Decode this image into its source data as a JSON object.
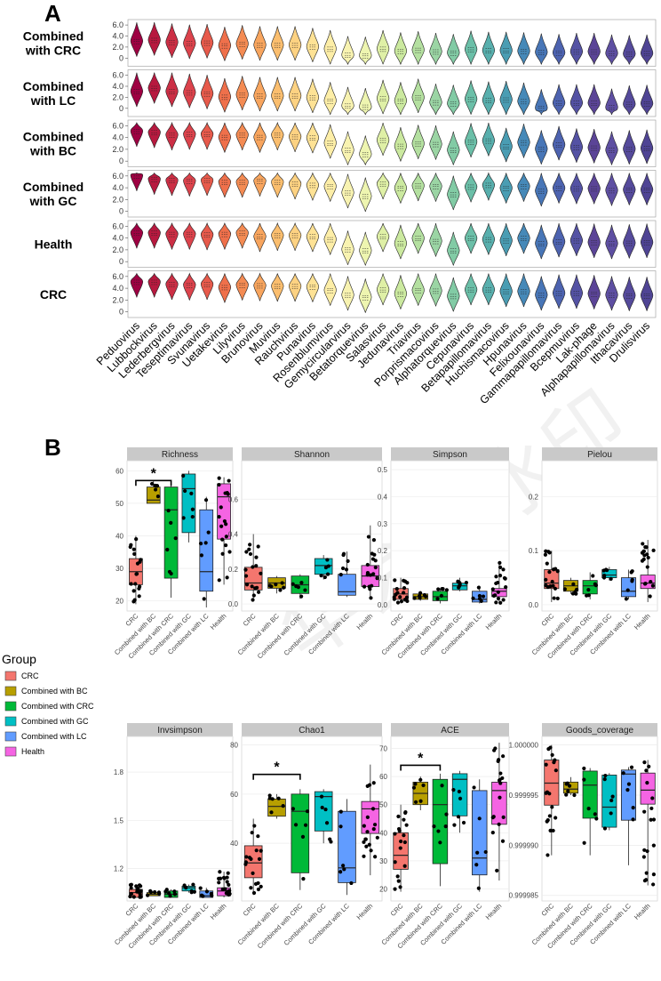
{
  "panel_a_label": "A",
  "panel_b_label": "B",
  "watermark_text": "华会员水印",
  "chart_data": [
    {
      "type": "violin",
      "panel": "A",
      "y_ticks": [
        "0",
        "2.0",
        "4.0",
        "6.0"
      ],
      "genera": [
        "Peduovirus",
        "Lubbockvirus",
        "Lederbergvirus",
        "Teseptimavirus",
        "Svunavirus",
        "Uetakevirus",
        "Lilyvirus",
        "Brunovirus",
        "Muvirus",
        "Rauchvirus",
        "Punavirus",
        "Rosenblumvirus",
        "Gemycircularvirus",
        "Betatorquevirus",
        "Salasvirus",
        "Jedunavirus",
        "Triavirus",
        "Porprismacovirus",
        "Alphatorquevirus",
        "Cepunavirus",
        "Betapapillomavirus",
        "Huchismacovirus",
        "Hpunavirus",
        "Felixounavirus",
        "Gammapapillomavirus",
        "Bcepmuvirus",
        "Lak-phage",
        "Alphapapillomavirus",
        "Ithacavirus",
        "Drulisvirus"
      ],
      "rows": [
        {
          "label_line1": "Combined",
          "label_line2": "with CRC",
          "ylim": [
            -1,
            6.5
          ],
          "ticks": [
            0,
            2,
            4,
            6
          ],
          "medians": [
            3.0,
            3.2,
            2.8,
            2.6,
            2.7,
            2.2,
            2.5,
            2.3,
            2.3,
            2.3,
            2.0,
            1.6,
            0.5,
            0.4,
            1.6,
            1.2,
            1.4,
            1.1,
            0.9,
            1.5,
            1.3,
            1.3,
            1.2,
            1.0,
            0.9,
            1.1,
            1.1,
            0.8,
            0.7,
            0.8
          ]
        },
        {
          "label_line1": "Combined",
          "label_line2": "with LC",
          "ylim": [
            -1,
            6.5
          ],
          "ticks": [
            0,
            2,
            4,
            6
          ],
          "medians": [
            3.0,
            3.6,
            3.0,
            2.8,
            2.6,
            2.0,
            2.4,
            2.2,
            2.2,
            2.2,
            1.9,
            1.3,
            0.4,
            0.2,
            1.7,
            1.3,
            1.9,
            1.0,
            0.8,
            1.6,
            1.4,
            1.5,
            1.2,
            0.0,
            0.9,
            0.9,
            0.9,
            0.1,
            0.7,
            0.8
          ]
        },
        {
          "label_line1": "Combined",
          "label_line2": "with BC",
          "ylim": [
            -0.5,
            6.5
          ],
          "ticks": [
            0,
            2,
            4,
            6
          ],
          "medians": [
            5.0,
            4.8,
            4.4,
            4.5,
            4.5,
            4.0,
            4.4,
            4.0,
            4.4,
            4.1,
            3.9,
            3.0,
            1.8,
            1.1,
            3.5,
            2.5,
            2.9,
            2.8,
            1.8,
            3.2,
            3.4,
            2.4,
            3.1,
            2.0,
            2.7,
            2.3,
            2.2,
            1.8,
            2.0,
            2.1
          ]
        },
        {
          "label_line1": "Combined",
          "label_line2": "with GC",
          "ylim": [
            -0.5,
            6.5
          ],
          "ticks": [
            0,
            2,
            4,
            6
          ],
          "medians": [
            6.0,
            5.4,
            5.2,
            5.1,
            5.2,
            4.9,
            4.9,
            5.1,
            4.9,
            4.6,
            4.4,
            4.2,
            3.1,
            2.5,
            4.6,
            3.9,
            4.3,
            4.2,
            2.8,
            4.1,
            4.4,
            3.9,
            4.2,
            3.4,
            3.9,
            3.8,
            3.8,
            3.5,
            3.6,
            3.6
          ]
        },
        {
          "label_line1": "Health",
          "label_line2": "",
          "ylim": [
            -0.5,
            6.5
          ],
          "ticks": [
            0,
            2,
            4,
            6
          ],
          "medians": [
            4.8,
            4.8,
            4.6,
            4.6,
            4.5,
            4.6,
            4.8,
            4.2,
            4.4,
            4.4,
            4.2,
            3.7,
            2.0,
            1.8,
            4.2,
            3.0,
            3.9,
            3.4,
            1.8,
            3.9,
            3.7,
            3.5,
            3.9,
            3.0,
            3.3,
            3.5,
            3.2,
            3.0,
            3.1,
            3.2
          ]
        },
        {
          "label_line1": "CRC",
          "label_line2": "",
          "ylim": [
            -0.5,
            6.5
          ],
          "ticks": [
            0,
            2,
            4,
            6
          ],
          "medians": [
            5.0,
            5.0,
            4.6,
            4.5,
            4.6,
            4.1,
            4.5,
            4.4,
            4.3,
            4.3,
            4.2,
            3.6,
            2.8,
            2.4,
            3.7,
            3.0,
            3.6,
            3.5,
            2.6,
            3.7,
            3.7,
            3.4,
            3.4,
            2.8,
            3.1,
            3.1,
            3.0,
            2.8,
            2.7,
            2.7
          ]
        }
      ]
    },
    {
      "type": "box",
      "panel": "B",
      "groups": [
        "CRC",
        "Combined with BC",
        "Combined with CRC",
        "Combined with GC",
        "Combined with LC",
        "Health"
      ],
      "colors": [
        "#f4766e",
        "#b79f00",
        "#00b938",
        "#00bfc4",
        "#619cff",
        "#f564e3"
      ],
      "legend": {
        "title": "Group",
        "labels": [
          "CRC",
          "Combined with BC",
          "Combined with CRC",
          "Combined with GC",
          "Combined with LC",
          "Health"
        ]
      },
      "facets": [
        {
          "title": "Richness",
          "yticks": [
            "20",
            "30",
            "40",
            "50",
            "60"
          ],
          "yrange": [
            18,
            62
          ],
          "tickvals": [
            20,
            30,
            40,
            50,
            60
          ],
          "boxes": [
            {
              "q1": 25,
              "med": 29,
              "q3": 33,
              "lo": 19,
              "hi": 40
            },
            {
              "q1": 50,
              "med": 51,
              "q3": 55,
              "lo": 50,
              "hi": 57
            },
            {
              "q1": 27,
              "med": 48,
              "q3": 55,
              "lo": 21,
              "hi": 57
            },
            {
              "q1": 41,
              "med": 54.5,
              "q3": 59,
              "lo": 38,
              "hi": 60
            },
            {
              "q1": 23,
              "med": 29,
              "q3": 48,
              "lo": 18,
              "hi": 52
            },
            {
              "q1": 39,
              "med": 52,
              "q3": 56,
              "lo": 25,
              "hi": 58
            }
          ],
          "sig": {
            "from": 0,
            "to": 2,
            "y": 57,
            "label": "*"
          }
        },
        {
          "title": "Shannon",
          "yticks": [
            "0.0",
            "0.2",
            "0.4",
            "0.6"
          ],
          "yrange": [
            -0.02,
            0.8
          ],
          "tickvals": [
            0,
            0.2,
            0.4,
            0.6
          ],
          "boxes": [
            {
              "q1": 0.08,
              "med": 0.12,
              "q3": 0.21,
              "lo": 0.02,
              "hi": 0.4
            },
            {
              "q1": 0.09,
              "med": 0.12,
              "q3": 0.15,
              "lo": 0.06,
              "hi": 0.16
            },
            {
              "q1": 0.06,
              "med": 0.11,
              "q3": 0.16,
              "lo": 0.03,
              "hi": 0.17
            },
            {
              "q1": 0.17,
              "med": 0.22,
              "q3": 0.26,
              "lo": 0.14,
              "hi": 0.28
            },
            {
              "q1": 0.05,
              "med": 0.07,
              "q3": 0.17,
              "lo": 0.04,
              "hi": 0.3
            },
            {
              "q1": 0.1,
              "med": 0.16,
              "q3": 0.22,
              "lo": 0.03,
              "hi": 0.45
            }
          ],
          "sig": null
        },
        {
          "title": "Simpson",
          "yticks": [
            "0.0",
            "0.1",
            "0.2",
            "0.3",
            "0.4",
            "0.5"
          ],
          "yrange": [
            -0.01,
            0.52
          ],
          "tickvals": [
            0,
            0.1,
            0.2,
            0.3,
            0.4,
            0.5
          ],
          "boxes": [
            {
              "q1": 0.02,
              "med": 0.04,
              "q3": 0.06,
              "lo": 0.005,
              "hi": 0.1
            },
            {
              "q1": 0.02,
              "med": 0.03,
              "q3": 0.04,
              "lo": 0.015,
              "hi": 0.05
            },
            {
              "q1": 0.015,
              "med": 0.03,
              "q3": 0.05,
              "lo": 0.005,
              "hi": 0.06
            },
            {
              "q1": 0.055,
              "med": 0.07,
              "q3": 0.08,
              "lo": 0.05,
              "hi": 0.1
            },
            {
              "q1": 0.01,
              "med": 0.02,
              "q3": 0.05,
              "lo": 0.005,
              "hi": 0.07
            },
            {
              "q1": 0.03,
              "med": 0.05,
              "q3": 0.06,
              "lo": 0.005,
              "hi": 0.16
            }
          ],
          "sig": null
        },
        {
          "title": "Pielou",
          "yticks": [
            "0.0",
            "0.1",
            "0.2"
          ],
          "yrange": [
            -0.005,
            0.26
          ],
          "tickvals": [
            0,
            0.1,
            0.2
          ],
          "boxes": [
            {
              "q1": 0.03,
              "med": 0.04,
              "q3": 0.065,
              "lo": 0.005,
              "hi": 0.1
            },
            {
              "q1": 0.025,
              "med": 0.035,
              "q3": 0.045,
              "lo": 0.02,
              "hi": 0.05
            },
            {
              "q1": 0.02,
              "med": 0.035,
              "q3": 0.045,
              "lo": 0.01,
              "hi": 0.06
            },
            {
              "q1": 0.05,
              "med": 0.055,
              "q3": 0.065,
              "lo": 0.045,
              "hi": 0.07
            },
            {
              "q1": 0.015,
              "med": 0.025,
              "q3": 0.05,
              "lo": 0.01,
              "hi": 0.065
            },
            {
              "q1": 0.03,
              "med": 0.04,
              "q3": 0.055,
              "lo": 0.005,
              "hi": 0.12
            }
          ],
          "sig": null
        },
        {
          "title": "Invsimpson",
          "yticks": [
            "1.2",
            "1.5",
            "1.8"
          ],
          "yrange": [
            1.02,
            2.0
          ],
          "tickvals": [
            1.2,
            1.5,
            1.8
          ],
          "boxes": [
            {
              "q1": 1.02,
              "med": 1.05,
              "q3": 1.07,
              "lo": 1.02,
              "hi": 1.1
            },
            {
              "q1": 1.03,
              "med": 1.04,
              "q3": 1.05,
              "lo": 1.03,
              "hi": 1.06
            },
            {
              "q1": 1.02,
              "med": 1.04,
              "q3": 1.06,
              "lo": 1.02,
              "hi": 1.07
            },
            {
              "q1": 1.06,
              "med": 1.08,
              "q3": 1.09,
              "lo": 1.05,
              "hi": 1.1
            },
            {
              "q1": 1.02,
              "med": 1.03,
              "q3": 1.06,
              "lo": 1.02,
              "hi": 1.08
            },
            {
              "q1": 1.03,
              "med": 1.06,
              "q3": 1.08,
              "lo": 1.02,
              "hi": 1.18
            }
          ],
          "sig": null
        },
        {
          "title": "Chao1",
          "yticks": [
            "40",
            "60",
            "80"
          ],
          "yrange": [
            18,
            82
          ],
          "tickvals": [
            40,
            60,
            80
          ],
          "boxes": [
            {
              "q1": 26,
              "med": 32,
              "q3": 39,
              "lo": 19,
              "hi": 50
            },
            {
              "q1": 51,
              "med": 55,
              "q3": 58,
              "lo": 50,
              "hi": 60
            },
            {
              "q1": 28,
              "med": 53,
              "q3": 60,
              "lo": 21,
              "hi": 62
            },
            {
              "q1": 45,
              "med": 59,
              "q3": 61,
              "lo": 40,
              "hi": 62
            },
            {
              "q1": 24,
              "med": 30,
              "q3": 53,
              "lo": 19,
              "hi": 58
            },
            {
              "q1": 44,
              "med": 54,
              "q3": 57,
              "lo": 27,
              "hi": 72
            }
          ],
          "sig": {
            "from": 0,
            "to": 2,
            "y": 68,
            "label": "*"
          }
        },
        {
          "title": "ACE",
          "yticks": [
            "20",
            "30",
            "40",
            "50",
            "60",
            "70"
          ],
          "yrange": [
            17,
            73
          ],
          "tickvals": [
            20,
            30,
            40,
            50,
            60,
            70
          ],
          "boxes": [
            {
              "q1": 27,
              "med": 32,
              "q3": 40,
              "lo": 19,
              "hi": 50
            },
            {
              "q1": 50,
              "med": 54,
              "q3": 58,
              "lo": 48,
              "hi": 60
            },
            {
              "q1": 29,
              "med": 50,
              "q3": 59,
              "lo": 21,
              "hi": 61
            },
            {
              "q1": 46,
              "med": 59,
              "q3": 61,
              "lo": 40,
              "hi": 62
            },
            {
              "q1": 25,
              "med": 31,
              "q3": 55,
              "lo": 19,
              "hi": 59
            },
            {
              "q1": 43,
              "med": 55,
              "q3": 58,
              "lo": 23,
              "hi": 72
            }
          ],
          "sig": {
            "from": 0,
            "to": 2,
            "y": 64,
            "label": "*"
          }
        },
        {
          "title": "Goods_coverage",
          "yticks": [
            "0.999985",
            "0.999990",
            "0.999995",
            "1.000000"
          ],
          "yrange": [
            0.9999848,
            1.0000005
          ],
          "tickvals": [
            0.999985,
            0.99999,
            0.999995,
            1.0
          ],
          "boxes": [
            {
              "q1": 0.999994,
              "med": 0.9999962,
              "q3": 0.9999985,
              "lo": 0.999989,
              "hi": 1.0
            },
            {
              "q1": 0.9999952,
              "med": 0.9999956,
              "q3": 0.9999963,
              "lo": 0.999995,
              "hi": 0.9999968
            },
            {
              "q1": 0.9999927,
              "med": 0.999996,
              "q3": 0.9999974,
              "lo": 0.999989,
              "hi": 0.9999977
            },
            {
              "q1": 0.9999918,
              "med": 0.9999938,
              "q3": 0.999997,
              "lo": 0.9999915,
              "hi": 0.9999972
            },
            {
              "q1": 0.9999925,
              "med": 0.9999971,
              "q3": 0.9999975,
              "lo": 0.999988,
              "hi": 0.9999978
            },
            {
              "q1": 0.9999941,
              "med": 0.9999955,
              "q3": 0.9999972,
              "lo": 0.999986,
              "hi": 0.9999985
            }
          ],
          "sig": null
        }
      ]
    }
  ]
}
